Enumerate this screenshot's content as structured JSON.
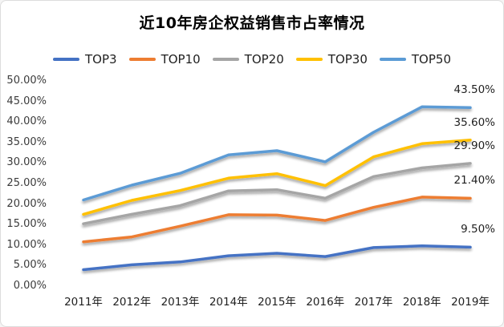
{
  "chart_data": {
    "type": "line",
    "title": "近10年房企权益销售市占率情况",
    "xlabel": "",
    "ylabel": "",
    "x_categories": [
      "2011年",
      "2012年",
      "2013年",
      "2014年",
      "2015年",
      "2016年",
      "2017年",
      "2018年",
      "2019年"
    ],
    "y_ticks": [
      {
        "label": "50.00%",
        "value": 50
      },
      {
        "label": "45.00%",
        "value": 45
      },
      {
        "label": "40.00%",
        "value": 40
      },
      {
        "label": "35.00%",
        "value": 35
      },
      {
        "label": "30.00%",
        "value": 30
      },
      {
        "label": "25.00%",
        "value": 25
      },
      {
        "label": "20.00%",
        "value": 20
      },
      {
        "label": "15.00%",
        "value": 15
      },
      {
        "label": "10.00%",
        "value": 10
      },
      {
        "label": "5.00%",
        "value": 5
      },
      {
        "label": "0.00%",
        "value": 0
      }
    ],
    "ylim": [
      0,
      50
    ],
    "grid": false,
    "legend_position": "top",
    "series": [
      {
        "name": "TOP3",
        "color": "#4472C4",
        "values": [
          4.0,
          5.2,
          5.9,
          7.4,
          8.0,
          7.2,
          9.4,
          9.8,
          9.5
        ],
        "end_label": "9.50%"
      },
      {
        "name": "TOP10",
        "color": "#ED7D31",
        "values": [
          10.8,
          12.0,
          14.6,
          17.4,
          17.3,
          16.0,
          19.2,
          21.7,
          21.4
        ],
        "end_label": "21.40%"
      },
      {
        "name": "TOP20",
        "color": "#A5A5A5",
        "values": [
          15.2,
          17.5,
          19.6,
          23.2,
          23.5,
          21.4,
          26.7,
          28.8,
          29.9
        ],
        "end_label": "29.90%"
      },
      {
        "name": "TOP30",
        "color": "#FFC000",
        "values": [
          17.5,
          20.9,
          23.3,
          26.3,
          27.4,
          24.5,
          31.5,
          34.7,
          35.6
        ],
        "end_label": "35.60%"
      },
      {
        "name": "TOP50",
        "color": "#5B9BD5",
        "values": [
          21.0,
          24.6,
          27.5,
          32.0,
          33.0,
          30.3,
          37.5,
          43.7,
          43.5
        ],
        "end_label": "43.50%"
      }
    ]
  }
}
